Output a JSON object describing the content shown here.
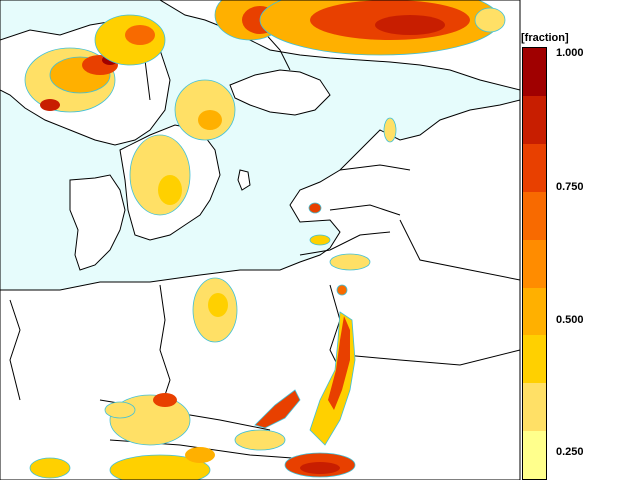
{
  "legend": {
    "title": "[fraction]",
    "labels": [
      "1.000",
      "0.750",
      "0.500",
      "0.250"
    ],
    "colors": [
      "#ffff8c",
      "#ffe066",
      "#ffd000",
      "#ffb000",
      "#ff8c00",
      "#f86a00",
      "#e84000",
      "#c81e00",
      "#a00000"
    ]
  },
  "map": {
    "ocean_color": "#e6fcfc",
    "land_color": "#ffffff",
    "border_color": "#000000",
    "contour_color": "#40c0d8"
  }
}
